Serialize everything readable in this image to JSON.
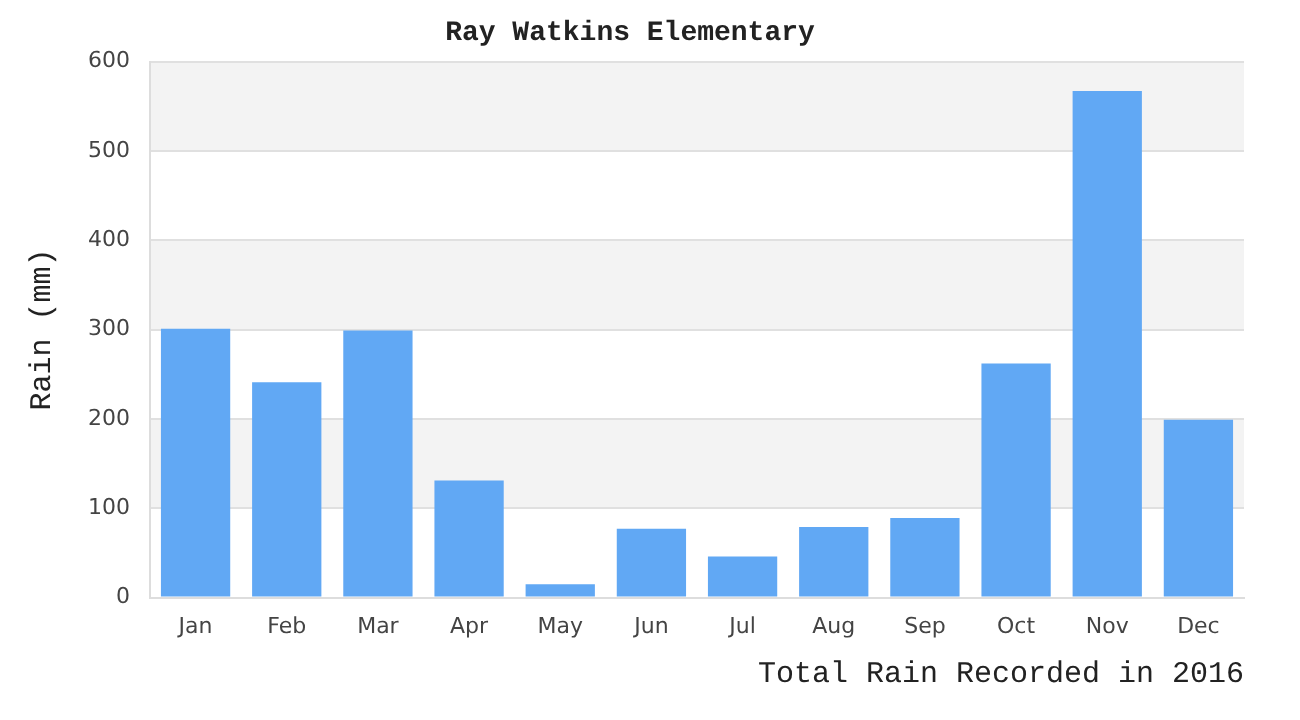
{
  "chart_data": {
    "type": "bar",
    "title": "Ray Watkins Elementary",
    "xlabel": "Total Rain Recorded in 2016",
    "ylabel": "Rain (mm)",
    "categories": [
      "Jan",
      "Feb",
      "Mar",
      "Apr",
      "May",
      "Jun",
      "Jul",
      "Aug",
      "Sep",
      "Oct",
      "Nov",
      "Dec"
    ],
    "values": [
      301,
      241,
      299,
      131,
      15,
      77,
      46,
      79,
      89,
      262,
      567,
      199
    ],
    "color": "#61a8f4",
    "ylim": [
      0,
      600
    ],
    "yticks": [
      0,
      100,
      200,
      300,
      400,
      500,
      600
    ],
    "grid": "y",
    "legend": false
  }
}
